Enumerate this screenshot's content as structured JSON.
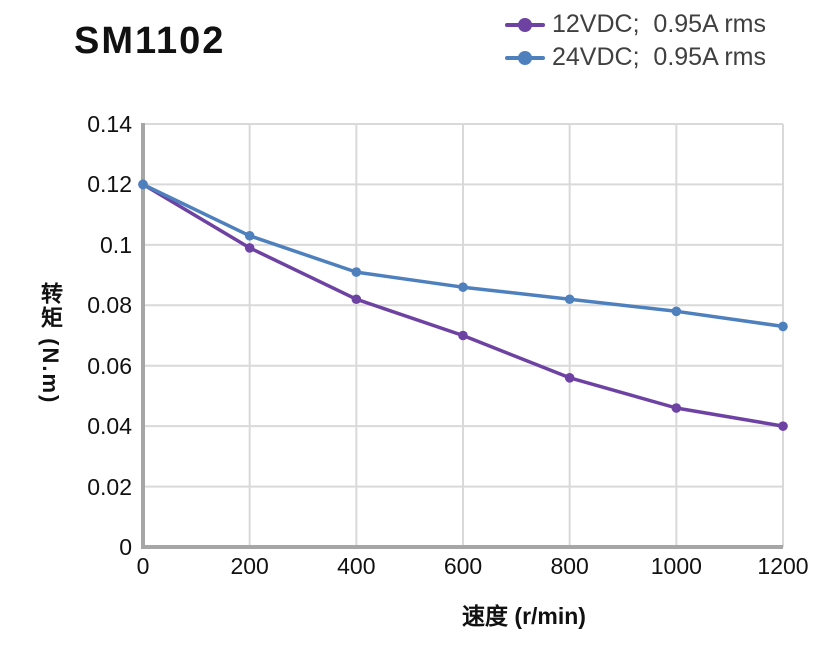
{
  "chart_data": {
    "type": "line",
    "title": "SM1102",
    "xlabel": "速度 (r/min)",
    "ylabel": "转矩 (N.m)",
    "x": [
      0,
      200,
      400,
      600,
      800,
      1000,
      1200
    ],
    "series": [
      {
        "name": "12VDC;  0.95A rms",
        "color": "#6E42A3",
        "marker": "circle",
        "values": [
          0.12,
          0.099,
          0.082,
          0.07,
          0.056,
          0.046,
          0.04
        ]
      },
      {
        "name": "24VDC;  0.95A rms",
        "color": "#4E80BE",
        "marker": "circle",
        "values": [
          0.12,
          0.103,
          0.091,
          0.086,
          0.082,
          0.078,
          0.073
        ]
      }
    ],
    "xlim": [
      0,
      1200
    ],
    "ylim": [
      0,
      0.14
    ],
    "xticks": [
      0,
      200,
      400,
      600,
      800,
      1000,
      1200
    ],
    "xtick_labels": [
      "0",
      "200",
      "400",
      "600",
      "800",
      "1000",
      "1200"
    ],
    "yticks": [
      0,
      0.02,
      0.04,
      0.06,
      0.08,
      0.1,
      0.12,
      0.14
    ],
    "ytick_labels": [
      "0",
      "0.02",
      "0.04",
      "0.06",
      "0.08",
      "0.1",
      "0.12",
      "0.14"
    ],
    "grid": true,
    "legend_position": "top-right",
    "colors": {
      "gridline": "#D9D9D9",
      "axis": "#A6A6A6",
      "tick_text": "#111111",
      "legend_text": "#404040"
    }
  }
}
